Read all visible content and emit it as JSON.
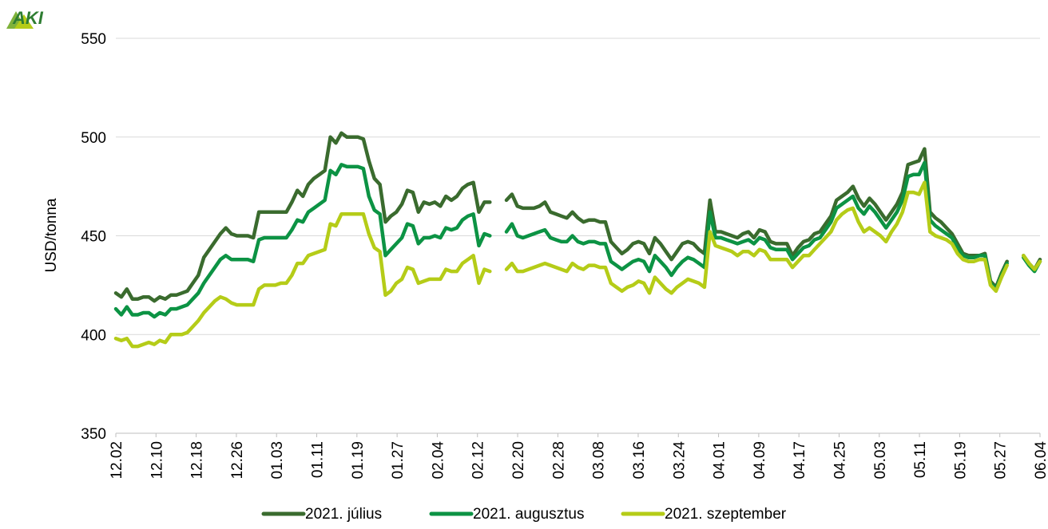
{
  "chart_data": {
    "type": "line",
    "ylabel": "USD/tonna",
    "ylim": [
      350,
      550
    ],
    "yticks": [
      350,
      400,
      450,
      500,
      550
    ],
    "grid": true,
    "legend_position": "bottom",
    "logo": "AKI",
    "x_tick_labels": [
      "12.02",
      "12.10",
      "12.18",
      "12.26",
      "01.03",
      "01.11",
      "01.19",
      "01.27",
      "02.04",
      "02.12",
      "02.20",
      "02.28",
      "03.08",
      "03.16",
      "03.24",
      "04.01",
      "04.09",
      "04.17",
      "04.25",
      "05.03",
      "05.11",
      "05.19",
      "05.27",
      "06.04"
    ],
    "series": [
      {
        "name": "2021. július",
        "color": "#3a6b2e",
        "values": [
          421,
          419,
          423,
          418,
          418,
          419,
          419,
          417,
          419,
          418,
          420,
          420,
          421,
          422,
          426,
          430,
          439,
          443,
          447,
          451,
          454,
          451,
          450,
          450,
          450,
          449,
          462,
          462,
          462,
          462,
          462,
          462,
          467,
          473,
          470,
          476,
          479,
          481,
          483,
          500,
          497,
          502,
          500,
          500,
          500,
          499,
          488,
          479,
          476,
          457,
          460,
          462,
          466,
          473,
          472,
          462,
          467,
          466,
          467,
          465,
          470,
          468,
          470,
          474,
          476,
          477,
          462,
          467,
          467,
          null,
          null,
          468,
          471,
          465,
          464,
          464,
          464,
          465,
          467,
          462,
          461,
          460,
          459,
          462,
          459,
          457,
          458,
          458,
          457,
          457,
          447,
          444,
          441,
          443,
          446,
          447,
          446,
          441,
          449,
          446,
          442,
          438,
          442,
          446,
          447,
          446,
          443,
          441,
          468,
          452,
          452,
          451,
          450,
          449,
          451,
          452,
          449,
          453,
          452,
          447,
          446,
          446,
          446,
          440,
          444,
          447,
          448,
          451,
          452,
          456,
          460,
          468,
          470,
          472,
          475,
          469,
          465,
          469,
          466,
          462,
          458,
          462,
          466,
          472,
          486,
          487,
          488,
          494,
          462,
          459,
          457,
          454,
          451,
          446,
          441,
          440,
          440,
          440,
          441,
          427,
          424,
          431,
          437,
          null,
          null,
          440,
          436,
          433,
          438
        ],
        "dash": false
      },
      {
        "name": "2021. augusztus",
        "color": "#0c9344",
        "values": [
          413,
          410,
          414,
          410,
          410,
          411,
          411,
          409,
          411,
          410,
          413,
          413,
          414,
          415,
          418,
          421,
          426,
          430,
          434,
          438,
          440,
          438,
          438,
          438,
          438,
          437,
          448,
          449,
          449,
          449,
          449,
          449,
          453,
          458,
          457,
          462,
          464,
          466,
          468,
          483,
          481,
          486,
          485,
          485,
          485,
          484,
          470,
          463,
          461,
          440,
          443,
          446,
          449,
          456,
          455,
          446,
          449,
          449,
          450,
          449,
          454,
          453,
          454,
          458,
          460,
          461,
          445,
          451,
          450,
          null,
          null,
          452,
          456,
          450,
          449,
          450,
          451,
          452,
          453,
          449,
          448,
          447,
          447,
          450,
          447,
          446,
          447,
          447,
          446,
          446,
          437,
          435,
          433,
          435,
          437,
          438,
          437,
          432,
          440,
          437,
          434,
          430,
          434,
          437,
          439,
          438,
          436,
          434,
          462,
          449,
          449,
          448,
          447,
          446,
          447,
          448,
          446,
          449,
          448,
          444,
          443,
          443,
          443,
          438,
          441,
          444,
          445,
          448,
          449,
          453,
          457,
          464,
          466,
          468,
          470,
          464,
          461,
          465,
          462,
          458,
          454,
          458,
          462,
          468,
          480,
          481,
          481,
          487,
          458,
          455,
          453,
          451,
          449,
          444,
          440,
          439,
          439,
          440,
          440,
          426,
          423,
          430,
          436,
          null,
          null,
          439,
          435,
          432,
          437
        ],
        "dash": false
      },
      {
        "name": "2021. szeptember",
        "color": "#b5cc18",
        "values": [
          398,
          397,
          398,
          394,
          394,
          395,
          396,
          395,
          397,
          396,
          400,
          400,
          400,
          401,
          404,
          407,
          411,
          414,
          417,
          419,
          418,
          416,
          415,
          415,
          415,
          415,
          423,
          425,
          425,
          425,
          426,
          426,
          430,
          436,
          436,
          440,
          441,
          442,
          443,
          456,
          455,
          461,
          461,
          461,
          461,
          461,
          451,
          444,
          442,
          420,
          422,
          426,
          428,
          434,
          433,
          426,
          427,
          428,
          428,
          428,
          433,
          432,
          432,
          436,
          438,
          440,
          426,
          433,
          432,
          null,
          null,
          433,
          436,
          432,
          432,
          433,
          434,
          435,
          436,
          435,
          434,
          433,
          432,
          436,
          434,
          433,
          435,
          435,
          434,
          434,
          426,
          424,
          422,
          424,
          425,
          427,
          426,
          421,
          429,
          426,
          423,
          421,
          424,
          426,
          428,
          427,
          426,
          424,
          452,
          445,
          444,
          443,
          442,
          440,
          442,
          442,
          440,
          443,
          442,
          438,
          438,
          438,
          438,
          434,
          437,
          440,
          440,
          443,
          446,
          449,
          452,
          458,
          461,
          463,
          464,
          457,
          452,
          454,
          452,
          450,
          447,
          452,
          456,
          462,
          472,
          472,
          471,
          477,
          452,
          450,
          449,
          448,
          446,
          441,
          438,
          437,
          437,
          438,
          438,
          425,
          422,
          429,
          435,
          null,
          null,
          440,
          436,
          433,
          437
        ],
        "dash": false
      }
    ]
  }
}
